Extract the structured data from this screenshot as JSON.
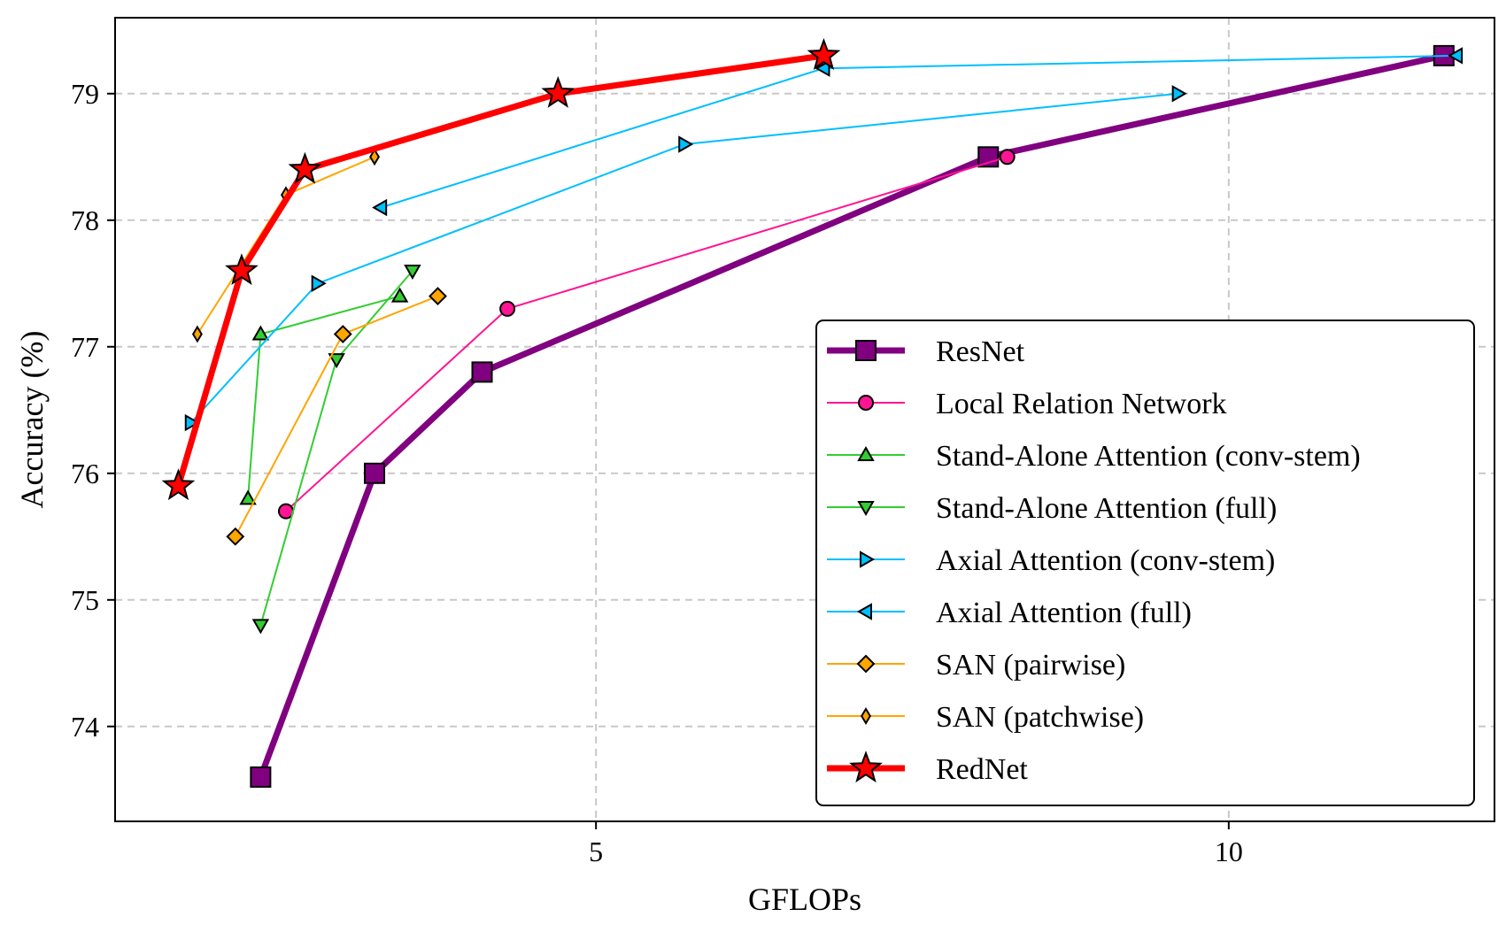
{
  "chart_data": {
    "type": "line",
    "title": "",
    "xlabel": "GFLOPs",
    "ylabel": "Accuracy (%)",
    "xlim": [
      1.2,
      12.1
    ],
    "ylim": [
      73.25,
      79.6
    ],
    "xticks": [
      5,
      10
    ],
    "yticks": [
      74,
      75,
      76,
      77,
      78,
      79
    ],
    "grid": true,
    "legend_position": "lower-right",
    "series": [
      {
        "name": "ResNet",
        "color": "#800080",
        "marker": "square",
        "marker_color": "#800080",
        "linewidth": 7,
        "marker_size": 22,
        "x": [
          2.35,
          3.25,
          4.1,
          8.1,
          11.7
        ],
        "y": [
          73.6,
          76.0,
          76.8,
          78.5,
          79.3
        ]
      },
      {
        "name": "Local Relation Network",
        "color": "#ff1493",
        "marker": "circle",
        "marker_color": "#ff1493",
        "linewidth": 2,
        "marker_size": 16,
        "x": [
          2.55,
          4.3,
          8.25
        ],
        "y": [
          75.7,
          77.3,
          78.5
        ]
      },
      {
        "name": "Stand-Alone Attention (conv-stem)",
        "color": "#32cd32",
        "marker": "triangle-up",
        "marker_color": "#32cd32",
        "linewidth": 2,
        "marker_size": 16,
        "x": [
          2.25,
          2.35,
          3.45
        ],
        "y": [
          75.8,
          77.1,
          77.4
        ]
      },
      {
        "name": "Stand-Alone Attention (full)",
        "color": "#32cd32",
        "marker": "triangle-down",
        "marker_color": "#32cd32",
        "linewidth": 2,
        "marker_size": 16,
        "x": [
          2.35,
          2.95,
          3.55
        ],
        "y": [
          74.8,
          76.9,
          77.6
        ]
      },
      {
        "name": "Axial Attention (conv-stem)",
        "color": "#00bfff",
        "marker": "triangle-right",
        "marker_color": "#00bfff",
        "linewidth": 2,
        "marker_size": 16,
        "x": [
          1.8,
          2.8,
          5.7,
          9.6
        ],
        "y": [
          76.4,
          77.5,
          78.6,
          79.0
        ]
      },
      {
        "name": "Axial Attention (full)",
        "color": "#00bfff",
        "marker": "triangle-left",
        "marker_color": "#00bfff",
        "linewidth": 2,
        "marker_size": 16,
        "x": [
          3.3,
          6.8,
          11.8
        ],
        "y": [
          78.1,
          79.2,
          79.3
        ]
      },
      {
        "name": "SAN (pairwise)",
        "color": "#ffa500",
        "marker": "diamond",
        "marker_color": "#ffa500",
        "linewidth": 2,
        "marker_size": 18,
        "x": [
          2.15,
          3.0,
          3.75
        ],
        "y": [
          75.5,
          77.1,
          77.4
        ]
      },
      {
        "name": "SAN (patchwise)",
        "color": "#ffa500",
        "marker": "thin-diamond",
        "marker_color": "#ffa500",
        "linewidth": 2,
        "marker_size": 16,
        "x": [
          1.85,
          2.55,
          3.25
        ],
        "y": [
          77.1,
          78.2,
          78.5
        ]
      },
      {
        "name": "RedNet",
        "color": "#ff0000",
        "marker": "star",
        "marker_color": "#ff0000",
        "linewidth": 7,
        "marker_size": 34,
        "x": [
          1.7,
          2.2,
          2.7,
          4.7,
          6.8
        ],
        "y": [
          75.9,
          77.6,
          78.4,
          79.0,
          79.3
        ]
      }
    ]
  }
}
